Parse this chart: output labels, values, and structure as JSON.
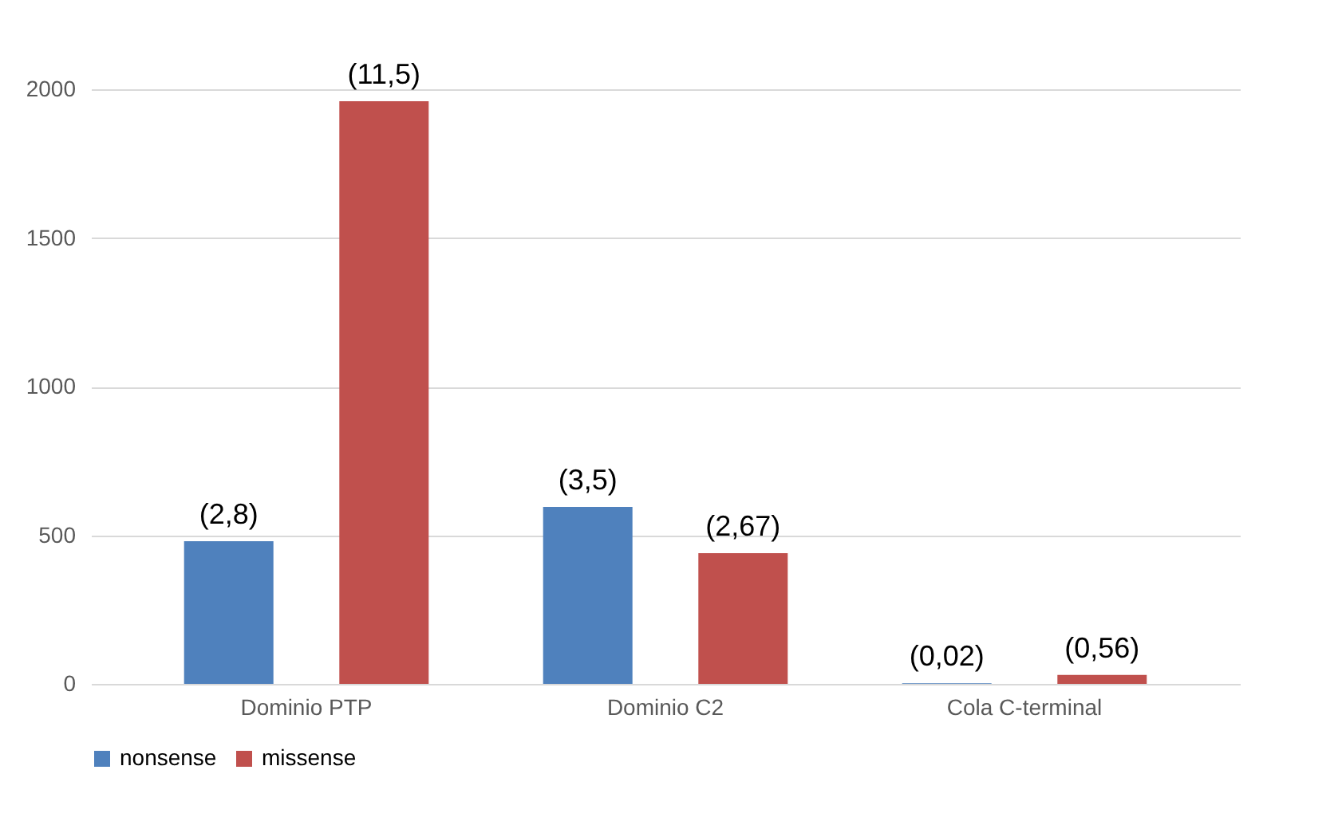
{
  "chart_data": {
    "type": "bar",
    "categories": [
      "Dominio PTP",
      "Dominio C2",
      "Cola C-terminal"
    ],
    "series": [
      {
        "name": "nonsense",
        "color": "#4f81bd",
        "values": [
          480,
          595,
          2
        ]
      },
      {
        "name": "missense",
        "color": "#c0504d",
        "values": [
          1960,
          440,
          30
        ]
      }
    ],
    "annotations": [
      "(2,8)",
      "(11,5)",
      "(3,5)",
      "(2,67)",
      "(0,02)",
      "(0,56)"
    ],
    "ylim": [
      0,
      2000
    ],
    "yticks": [
      0,
      500,
      1000,
      1500,
      2000
    ],
    "grid": "y",
    "legend": "bottom"
  }
}
